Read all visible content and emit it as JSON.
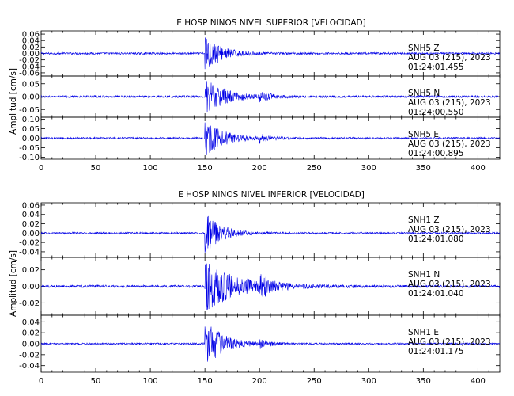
{
  "chart_data": [
    {
      "type": "line",
      "title": "E HOSP NINOS NIVEL SUPERIOR [VELOCIDAD]",
      "ylabel": "Amplitud [cm/s]",
      "xlim": [
        0,
        420
      ],
      "xticks": [
        "0",
        "50",
        "100",
        "150",
        "200",
        "250",
        "300",
        "350",
        "400"
      ],
      "xtick_values": [
        0,
        50,
        100,
        150,
        200,
        250,
        300,
        350,
        400
      ],
      "panels": [
        {
          "ylim": [
            -0.07,
            0.07
          ],
          "yticks": [
            "0.06",
            "0.04",
            "0.02",
            "0.00",
            "-0.02",
            "-0.04",
            "-0.06"
          ],
          "ytick_values": [
            0.06,
            0.04,
            0.02,
            0.0,
            -0.02,
            -0.04,
            -0.06
          ],
          "station": "SNH5",
          "component": "Z",
          "date": "AUG 03 (215), 2023",
          "time": "01:24:01.455",
          "noise": 0.003,
          "onset": 150,
          "peak": 0.06,
          "decay": 14,
          "late_burst_at": 0,
          "late_burst": 0
        },
        {
          "ylim": [
            -0.08,
            0.08
          ],
          "yticks": [
            "0.05",
            "0.00",
            "-0.05"
          ],
          "ytick_values": [
            0.05,
            0.0,
            -0.05
          ],
          "station": "SNH5",
          "component": "N",
          "date": "AUG 03 (215), 2023",
          "time": "01:24:00.550",
          "noise": 0.004,
          "onset": 150,
          "peak": 0.07,
          "decay": 18,
          "late_burst_at": 200,
          "late_burst": 0.02
        },
        {
          "ylim": [
            -0.11,
            0.11
          ],
          "yticks": [
            "0.10",
            "0.05",
            "0.00",
            "-0.05",
            "-0.10"
          ],
          "ytick_values": [
            0.1,
            0.05,
            0.0,
            -0.05,
            -0.1
          ],
          "station": "SNH5",
          "component": "E",
          "date": "AUG 03 (215), 2023",
          "time": "01:24:00.895",
          "noise": 0.005,
          "onset": 150,
          "peak": 0.1,
          "decay": 16,
          "late_burst_at": 200,
          "late_burst": 0.02
        }
      ]
    },
    {
      "type": "line",
      "title": "E HOSP NINOS NIVEL INFERIOR [VELOCIDAD]",
      "ylabel": "Amplitud [cm/s]",
      "xlim": [
        0,
        420
      ],
      "xticks": [
        "0",
        "50",
        "100",
        "150",
        "200",
        "250",
        "300",
        "350",
        "400"
      ],
      "xtick_values": [
        0,
        50,
        100,
        150,
        200,
        250,
        300,
        350,
        400
      ],
      "panels": [
        {
          "ylim": [
            -0.052,
            0.065
          ],
          "yticks": [
            "0.06",
            "0.04",
            "0.02",
            "0.00",
            "-0.02",
            "-0.04"
          ],
          "ytick_values": [
            0.06,
            0.04,
            0.02,
            0.0,
            -0.02,
            -0.04
          ],
          "station": "SNH1",
          "component": "Z",
          "date": "AUG 03 (215), 2023",
          "time": "01:24:01.080",
          "noise": 0.002,
          "onset": 150,
          "peak": 0.045,
          "decay": 14,
          "late_burst_at": 0,
          "late_burst": 0
        },
        {
          "ylim": [
            -0.035,
            0.035
          ],
          "yticks": [
            "0.02",
            "0.00",
            "-0.02"
          ],
          "ytick_values": [
            0.02,
            0.0,
            -0.02
          ],
          "station": "SNH1",
          "component": "N",
          "date": "AUG 03 (215), 2023",
          "time": "01:24:01.040",
          "noise": 0.0015,
          "onset": 150,
          "peak": 0.03,
          "decay": 30,
          "late_burst_at": 200,
          "late_burst": 0.013
        },
        {
          "ylim": [
            -0.052,
            0.052
          ],
          "yticks": [
            "0.04",
            "0.02",
            "0.00",
            "-0.02",
            "-0.04"
          ],
          "ytick_values": [
            0.04,
            0.02,
            0.0,
            -0.02,
            -0.04
          ],
          "station": "SNH1",
          "component": "E",
          "date": "AUG 03 (215), 2023",
          "time": "01:24:01.175",
          "noise": 0.0015,
          "onset": 150,
          "peak": 0.045,
          "decay": 16,
          "late_burst_at": 200,
          "late_burst": 0.008
        }
      ]
    }
  ],
  "colors": {
    "trace": "#0000e6",
    "axes": "#000000"
  }
}
